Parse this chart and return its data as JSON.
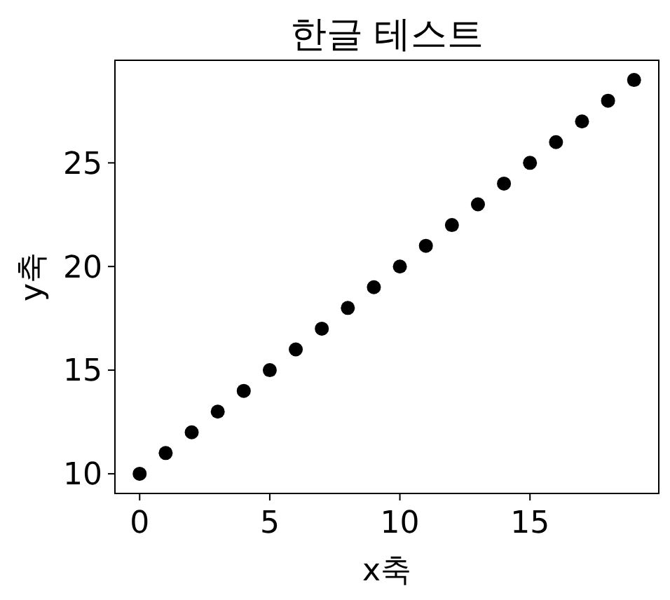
{
  "chart_data": {
    "type": "scatter",
    "title": "한글 테스트",
    "xlabel": "x축",
    "ylabel": "y축",
    "x": [
      0,
      1,
      2,
      3,
      4,
      5,
      6,
      7,
      8,
      9,
      10,
      11,
      12,
      13,
      14,
      15,
      16,
      17,
      18,
      19
    ],
    "series": [
      {
        "color": "#000000",
        "values": [
          10,
          11,
          12,
          13,
          14,
          15,
          16,
          17,
          18,
          19,
          20,
          21,
          22,
          23,
          24,
          25,
          26,
          27,
          28,
          29
        ]
      }
    ],
    "xlim": [
      -0.95,
      19.95
    ],
    "ylim": [
      9.05,
      29.95
    ],
    "xticks": [
      0,
      5,
      10,
      15
    ],
    "yticks": [
      10,
      15,
      20,
      25
    ],
    "marker": "circle",
    "grid": false
  }
}
